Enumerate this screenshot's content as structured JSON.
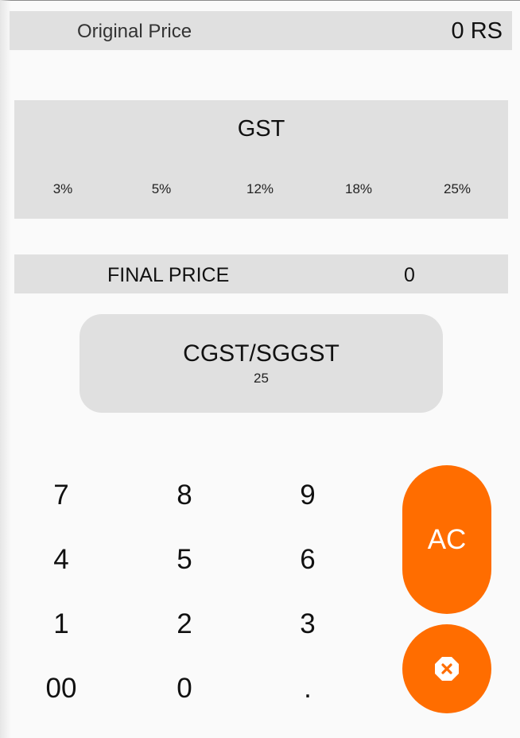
{
  "original_price": {
    "label": "Original Price",
    "value": "0 RS"
  },
  "gst": {
    "title": "GST",
    "options": [
      "3%",
      "5%",
      "12%",
      "18%",
      "25%"
    ]
  },
  "final_price": {
    "label": "FINAL PRICE",
    "value": "0"
  },
  "cgst_sgst": {
    "label": "CGST/SGGST",
    "value": "25"
  },
  "keypad": {
    "keys": [
      [
        "7",
        "8",
        "9"
      ],
      [
        "4",
        "5",
        "6"
      ],
      [
        "1",
        "2",
        "3"
      ],
      [
        "00",
        "0",
        "."
      ]
    ]
  },
  "clear_button": {
    "label": "AC"
  },
  "delete_button": {
    "icon": "backspace-icon"
  },
  "colors": {
    "accent": "#ff6d00",
    "panel": "#e0e0e0",
    "background": "#fafafa"
  }
}
